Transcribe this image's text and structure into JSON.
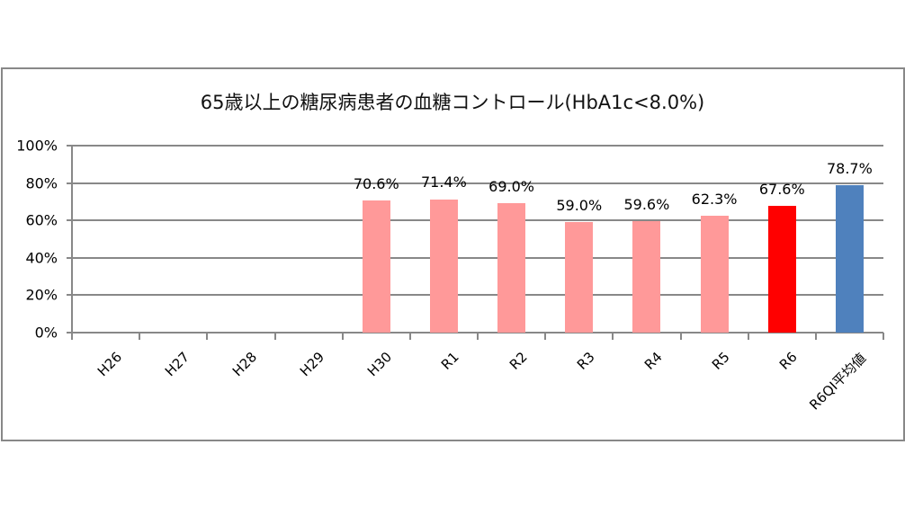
{
  "chart_data": {
    "type": "bar",
    "title": "65歳以上の糖尿病患者の血糖コントロール(HbA1c<8.0%)",
    "xlabel": "",
    "ylabel": "",
    "ylim": [
      0,
      100
    ],
    "yticks": [
      "0%",
      "20%",
      "40%",
      "60%",
      "80%",
      "100%"
    ],
    "grid": true,
    "legend": null,
    "categories": [
      "H26",
      "H27",
      "H28",
      "H29",
      "H30",
      "R1",
      "R2",
      "R3",
      "R4",
      "R5",
      "R6",
      "R6QI平均値"
    ],
    "values": [
      null,
      null,
      null,
      null,
      70.6,
      71.4,
      69.0,
      59.0,
      59.6,
      62.3,
      67.6,
      78.7
    ],
    "value_labels": [
      "",
      "",
      "",
      "",
      "70.6%",
      "71.4%",
      "69.0%",
      "59.0%",
      "59.6%",
      "62.3%",
      "67.6%",
      "78.7%"
    ],
    "bar_colors": [
      "#FF9999",
      "#FF9999",
      "#FF9999",
      "#FF9999",
      "#FF9999",
      "#FF9999",
      "#FF9999",
      "#FF9999",
      "#FF9999",
      "#FF9999",
      "#FF0000",
      "#4F81BD"
    ]
  },
  "colors": {
    "past_years": "#FF9999",
    "current_year": "#FF0000",
    "qi_average": "#4F81BD",
    "axis": "#888888"
  }
}
